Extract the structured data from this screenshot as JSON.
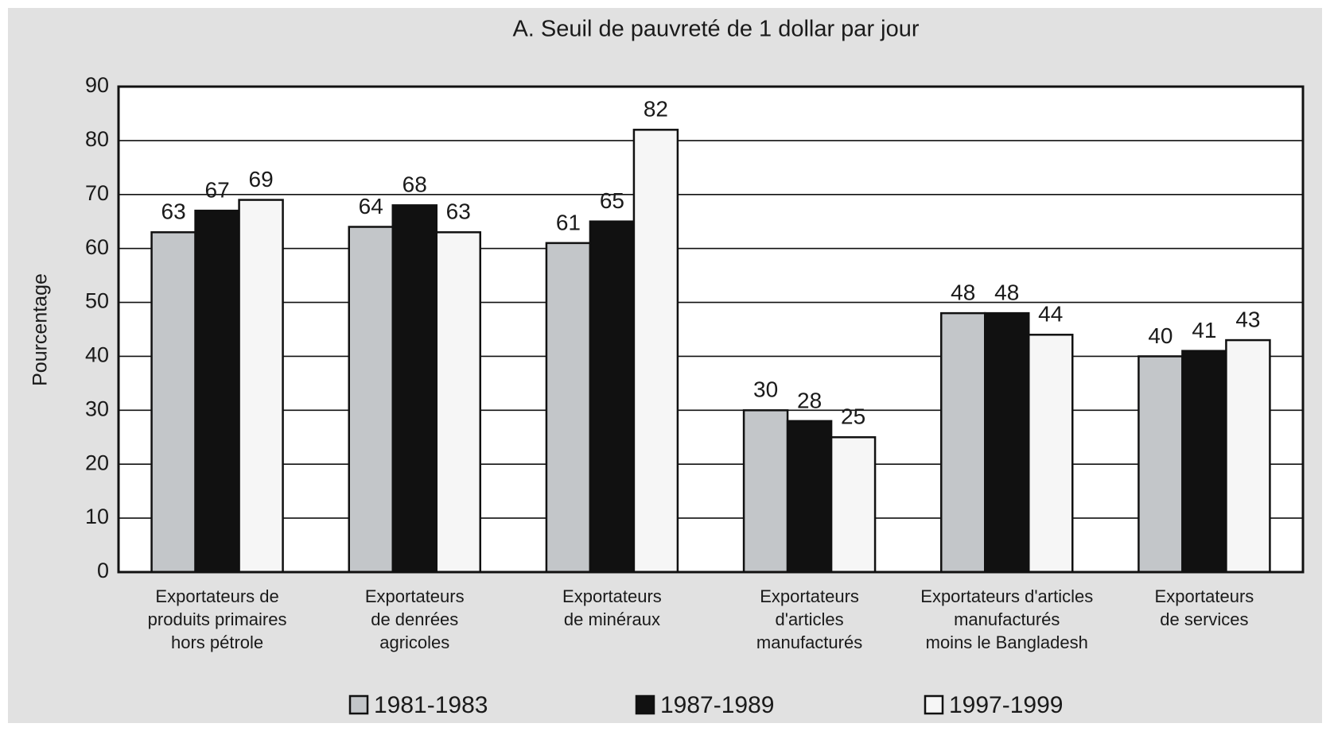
{
  "chart_data": {
    "type": "bar",
    "title": "A.  Seuil de pauvreté de 1 dollar par jour",
    "y_label": "Pourcentage",
    "categories": [
      [
        "Exportateurs de",
        "produits primaires",
        "hors pétrole"
      ],
      [
        "Exportateurs",
        "de denrées",
        "agricoles"
      ],
      [
        "Exportateurs",
        "de minéraux"
      ],
      [
        "Exportateurs",
        "d'articles",
        "manufacturés"
      ],
      [
        "Exportateurs d'articles",
        "manufacturés",
        "moins le Bangladesh"
      ],
      [
        "Exportateurs",
        "de services"
      ]
    ],
    "series": [
      {
        "name": "1981-1983",
        "color": "#c3c6c9",
        "values": [
          63,
          64,
          61,
          30,
          48,
          40
        ]
      },
      {
        "name": "1987-1989",
        "color": "#111111",
        "values": [
          67,
          68,
          65,
          28,
          48,
          41
        ]
      },
      {
        "name": "1997-1999",
        "color": "#f6f6f6",
        "values": [
          69,
          63,
          82,
          25,
          44,
          43
        ]
      }
    ],
    "ylim": [
      0,
      90
    ],
    "yticks": [
      0,
      10,
      20,
      30,
      40,
      50,
      60,
      70,
      80,
      90
    ],
    "grid": true,
    "legend": "bottom"
  }
}
